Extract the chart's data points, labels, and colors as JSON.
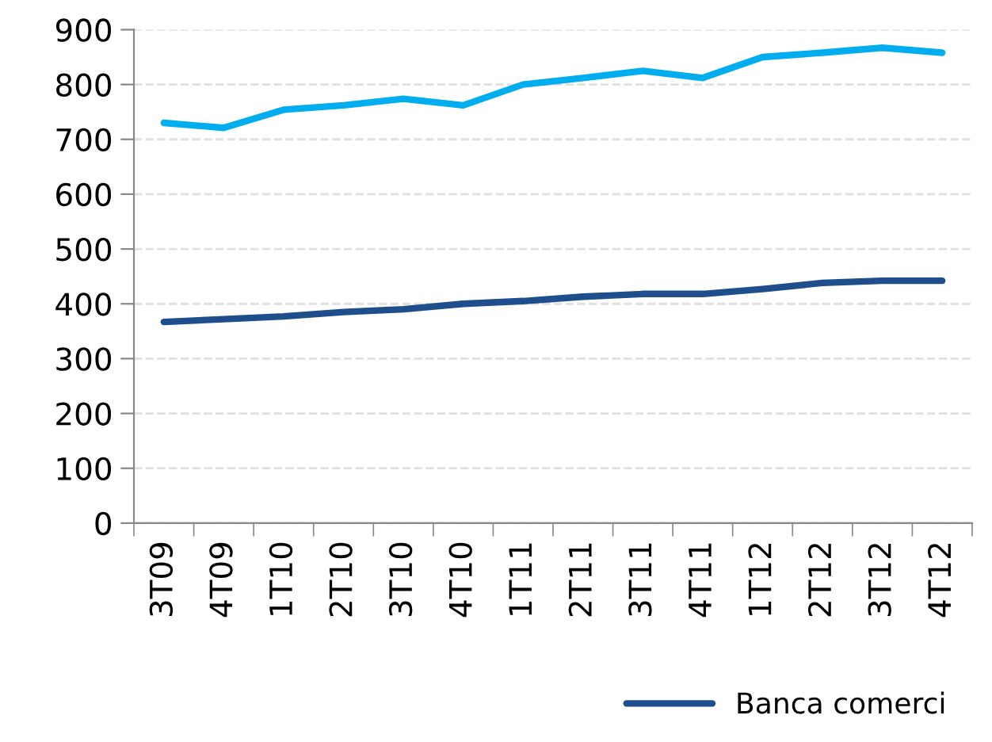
{
  "chart_data": {
    "type": "line",
    "categories": [
      "3T09",
      "4T09",
      "1T10",
      "2T10",
      "3T10",
      "4T10",
      "1T11",
      "2T11",
      "3T11",
      "4T11",
      "1T12",
      "2T12",
      "3T12",
      "4T12"
    ],
    "series": [
      {
        "color": "#00aeef",
        "values": [
          730,
          721,
          754,
          762,
          774,
          762,
          800,
          812,
          825,
          812,
          850,
          858,
          867,
          858
        ]
      },
      {
        "name": "Banca comerci",
        "color": "#1f4e8c",
        "values": [
          367,
          372,
          377,
          385,
          390,
          400,
          405,
          413,
          418,
          418,
          427,
          438,
          442,
          442
        ]
      }
    ],
    "ylim": [
      0,
      900
    ],
    "yticks": [
      0,
      100,
      200,
      300,
      400,
      500,
      600,
      700,
      800,
      900
    ],
    "grid": "y",
    "legend": "bottom right",
    "marker": "none",
    "line_style": "solid"
  }
}
